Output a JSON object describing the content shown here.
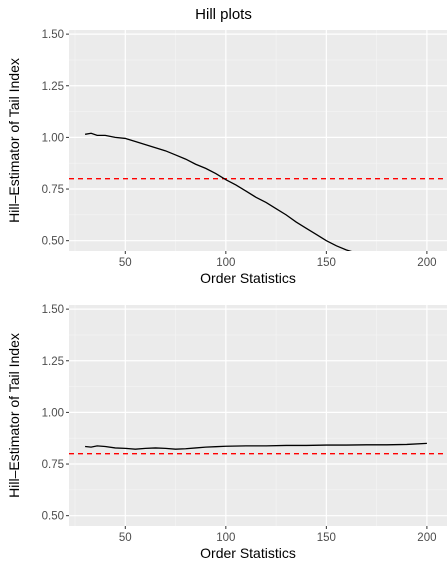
{
  "figure": {
    "title": "Hill plots"
  },
  "chart_data": [
    {
      "type": "line",
      "title": "",
      "xlabel": "Order Statistics",
      "ylabel": "Hill–Estimator of Tail Index",
      "xlim": [
        22,
        210
      ],
      "ylim": [
        0.45,
        1.52
      ],
      "x_ticks": [
        50,
        100,
        150,
        200
      ],
      "x_tick_labels": [
        "50",
        "100",
        "150",
        "200"
      ],
      "y_ticks": [
        0.5,
        0.75,
        1.0,
        1.25,
        1.5
      ],
      "y_tick_labels": [
        "0.50",
        "0.75",
        "1.00",
        "1.25",
        "1.50"
      ],
      "grid": true,
      "reference_line": {
        "y": 0.8,
        "style": "dashed",
        "color": "#ff0000"
      },
      "series": [
        {
          "color": "#000000",
          "x": [
            30,
            33,
            36,
            40,
            45,
            50,
            55,
            60,
            65,
            70,
            75,
            80,
            85,
            90,
            95,
            100,
            105,
            110,
            115,
            120,
            125,
            130,
            135,
            140,
            145,
            150,
            155,
            160,
            165,
            168
          ],
          "y": [
            1.015,
            1.02,
            1.01,
            1.01,
            1.0,
            0.995,
            0.98,
            0.965,
            0.95,
            0.935,
            0.915,
            0.895,
            0.87,
            0.85,
            0.825,
            0.795,
            0.77,
            0.74,
            0.71,
            0.685,
            0.655,
            0.625,
            0.59,
            0.56,
            0.53,
            0.5,
            0.475,
            0.455,
            0.44,
            0.44
          ]
        }
      ]
    },
    {
      "type": "line",
      "title": "",
      "xlabel": "Order Statistics",
      "ylabel": "Hill–Estimator of Tail Index",
      "xlim": [
        22,
        210
      ],
      "ylim": [
        0.45,
        1.52
      ],
      "x_ticks": [
        50,
        100,
        150,
        200
      ],
      "x_tick_labels": [
        "50",
        "100",
        "150",
        "200"
      ],
      "y_ticks": [
        0.5,
        0.75,
        1.0,
        1.25,
        1.5
      ],
      "y_tick_labels": [
        "0.50",
        "0.75",
        "1.00",
        "1.25",
        "1.50"
      ],
      "grid": true,
      "reference_line": {
        "y": 0.8,
        "style": "dashed",
        "color": "#ff0000"
      },
      "series": [
        {
          "color": "#000000",
          "x": [
            30,
            33,
            36,
            40,
            45,
            50,
            55,
            60,
            65,
            70,
            75,
            80,
            85,
            90,
            95,
            100,
            110,
            120,
            130,
            140,
            150,
            160,
            170,
            180,
            190,
            200
          ],
          "y": [
            0.835,
            0.832,
            0.838,
            0.835,
            0.828,
            0.826,
            0.822,
            0.826,
            0.828,
            0.826,
            0.822,
            0.824,
            0.828,
            0.832,
            0.834,
            0.836,
            0.838,
            0.838,
            0.84,
            0.84,
            0.842,
            0.842,
            0.843,
            0.843,
            0.845,
            0.85
          ]
        }
      ]
    }
  ]
}
